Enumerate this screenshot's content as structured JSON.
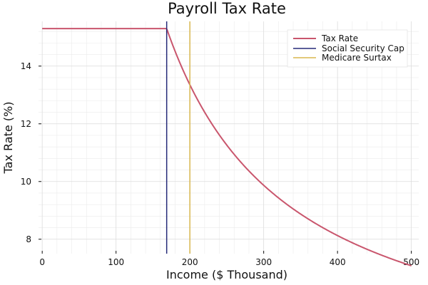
{
  "chart_data": {
    "type": "line",
    "title": "Payroll Tax Rate",
    "xlabel": "Income ($ Thousand)",
    "ylabel": "Tax Rate (%)",
    "xlim": [
      -5,
      510
    ],
    "ylim": [
      7.5,
      15.55
    ],
    "x_ticks": [
      0,
      100,
      200,
      300,
      400,
      500
    ],
    "y_ticks": [
      8,
      10,
      12,
      14
    ],
    "grid": true,
    "legend_position": "top-right",
    "series": [
      {
        "name": "Tax Rate",
        "kind": "line",
        "color": "#c9566d",
        "formula": "rate = 15.3 for income <= 168.6; rate = 2.9 + 12.4 * 168.6 / income for income > 168.6",
        "x_start": 0,
        "x_end": 500,
        "points": [
          [
            0,
            15.3
          ],
          [
            168.6,
            15.3
          ],
          [
            200,
            13.35
          ],
          [
            250,
            11.26
          ],
          [
            300,
            9.87
          ],
          [
            350,
            8.87
          ],
          [
            400,
            8.13
          ],
          [
            450,
            7.55
          ],
          [
            500,
            7.08
          ]
        ]
      },
      {
        "name": "Social Security Cap",
        "kind": "vline",
        "color": "#262a78",
        "x": 168.6
      },
      {
        "name": "Medicare Surtax",
        "kind": "vline",
        "color": "#d8b74f",
        "x": 200
      }
    ]
  }
}
